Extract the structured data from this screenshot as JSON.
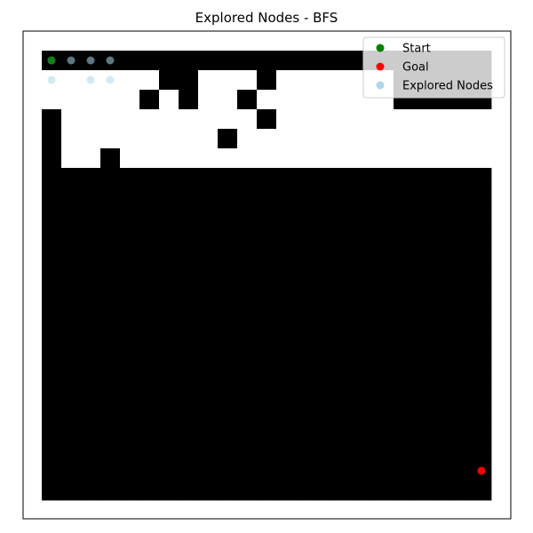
{
  "chart_data": {
    "type": "heatmap",
    "title": "Explored Nodes - BFS",
    "xlabel": "",
    "ylabel": "",
    "grid_size": [
      23,
      23
    ],
    "colors": {
      "wall": "#000000",
      "free": "#ffffff",
      "start": "#008000",
      "goal": "#ff0000",
      "explored": "#add8e6"
    },
    "grid": [
      "11111111111111111111111",
      "00000011000100000011111",
      "00000101001000000011111",
      "10000000000100000000000",
      "10000000010000000000000",
      "10010000000000000000000",
      "11111111111111111111111",
      "11111111111111111111111",
      "11111111111111111111111",
      "11111111111111111111111",
      "11111111111111111111111",
      "11111111111111111111111",
      "11111111111111111111111",
      "11111111111111111111111",
      "11111111111111111111111",
      "11111111111111111111111",
      "11111111111111111111111",
      "11111111111111111111111",
      "11111111111111111111111",
      "11111111111111111111111",
      "11111111111111111111111",
      "11111111111111111111111",
      "11111111111111111111111"
    ],
    "start": [
      0,
      0
    ],
    "goal": [
      22,
      21
    ],
    "explored": [
      [
        0,
        0
      ],
      [
        1,
        0
      ],
      [
        2,
        0
      ],
      [
        3,
        0
      ],
      [
        0,
        1
      ],
      [
        2,
        1
      ],
      [
        3,
        1
      ]
    ],
    "legend": {
      "placement": "top-right",
      "entries": [
        {
          "label": "Start",
          "color": "#008000"
        },
        {
          "label": "Goal",
          "color": "#ff0000"
        },
        {
          "label": "Explored Nodes",
          "color": "#add8e6"
        }
      ]
    }
  }
}
